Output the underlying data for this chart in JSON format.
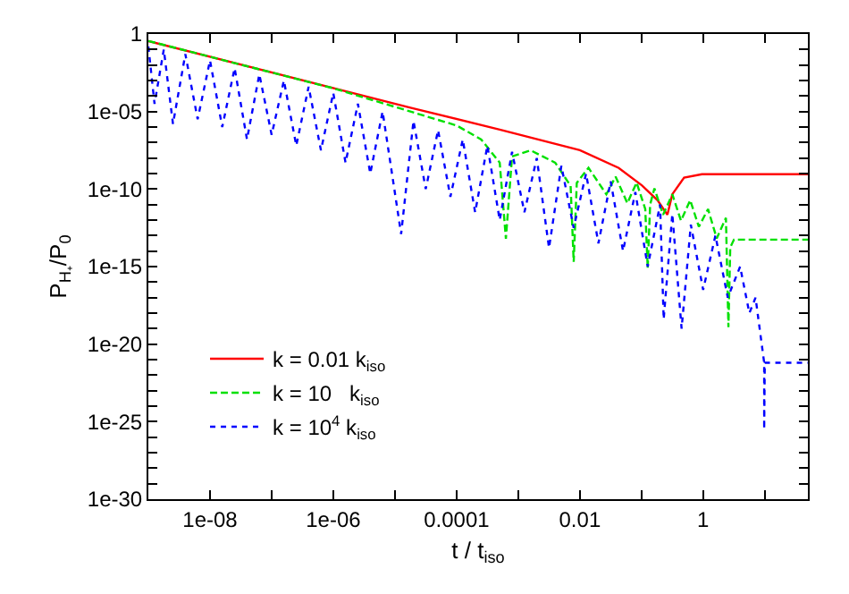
{
  "chart_data": {
    "type": "line",
    "xlabel": "t / t$_{iso}$",
    "ylabel": "P$_{H₊}$/P$_{0}$",
    "log": "xy",
    "legend": "bottom left",
    "marker": "none",
    "xlim": [
      1e-09,
      50
    ],
    "ylim": [
      1e-30,
      1
    ],
    "xticks": [
      1e-08,
      1e-06,
      0.0001,
      0.01,
      1,
      {
        "value": 1e-07,
        "label": null
      },
      {
        "value": 1e-05,
        "label": null
      },
      {
        "value": 0.001,
        "label": null
      },
      {
        "value": 0.1,
        "label": null
      },
      {
        "value": 10,
        "label": null
      }
    ],
    "yticks": [
      1,
      1e-05,
      1e-10,
      1e-15,
      1e-20,
      1e-25,
      1e-30,
      {
        "value": 0.1,
        "label": null
      },
      {
        "value": 0.01,
        "label": null
      },
      {
        "value": 0.001,
        "label": null
      },
      {
        "value": 0.0001,
        "label": null
      },
      {
        "value": 1e-06,
        "label": null
      },
      {
        "value": 1e-07,
        "label": null
      },
      {
        "value": 1e-08,
        "label": null
      },
      {
        "value": 1e-09,
        "label": null
      },
      {
        "value": 1e-11,
        "label": null
      },
      {
        "value": 1e-12,
        "label": null
      },
      {
        "value": 1e-13,
        "label": null
      },
      {
        "value": 1e-14,
        "label": null
      },
      {
        "value": 1e-16,
        "label": null
      },
      {
        "value": 1e-17,
        "label": null
      },
      {
        "value": 1e-18,
        "label": null
      },
      {
        "value": 1e-19,
        "label": null
      },
      {
        "value": 1e-21,
        "label": null
      },
      {
        "value": 1e-22,
        "label": null
      },
      {
        "value": 1e-23,
        "label": null
      },
      {
        "value": 1e-24,
        "label": null
      },
      {
        "value": 1e-26,
        "label": null
      },
      {
        "value": 1e-27,
        "label": null
      },
      {
        "value": 1e-28,
        "label": null
      },
      {
        "value": 1e-29,
        "label": null
      }
    ],
    "series": [
      {
        "name": "k = 0.01 k$_{iso}$",
        "color": "#ff0000",
        "line_style": "solid",
        "x": [
          1e-09,
          1.78e-05,
          0.000501,
          0.01,
          0.0427,
          0.102,
          0.182,
          0.263,
          0.316,
          0.49,
          0.955,
          50
        ],
        "values": [
          0.347,
          1.78e-05,
          6.9e-07,
          3.2e-08,
          2.3e-09,
          1.7e-10,
          1.9e-11,
          2.2e-12,
          4.6e-11,
          5.4e-10,
          9.1e-10,
          9.1e-10
        ]
      },
      {
        "name": "k = 10   k$_{iso}$",
        "color": "#00e000",
        "line_style": "dashed",
        "x": [
          1e-09,
          1e-06,
          1.78e-05,
          0.0001,
          0.000251,
          0.000501,
          0.000631,
          0.000794,
          0.00158,
          0.00398,
          0.00708,
          0.00794,
          0.00891,
          0.0138,
          0.0269,
          0.038,
          0.0589,
          0.0832,
          0.115,
          0.126,
          0.138,
          0.162,
          0.224,
          0.316,
          0.437,
          0.617,
          0.851,
          1.2,
          1.66,
          2.34,
          2.57,
          2.75,
          3.16,
          50
        ],
        "values": [
          0.355,
          0.000316,
          1e-05,
          1.26e-06,
          1.58e-07,
          5.01e-09,
          6.31e-14,
          1.26e-08,
          3.16e-08,
          5.01e-09,
          1.58e-10,
          2e-15,
          2.51e-10,
          2.34e-09,
          4.57e-11,
          6.31e-10,
          1.23e-11,
          2.63e-10,
          5.13e-12,
          7.94e-16,
          1e-11,
          1.1e-10,
          2.19e-12,
          4.57e-11,
          9.1e-13,
          1.9e-11,
          3.7e-13,
          5.13e-12,
          6.5e-14,
          1.4e-12,
          1.26e-19,
          1.74e-14,
          5.5e-14,
          5.5e-14
        ]
      },
      {
        "name": "k = 10$^{4}$ k$_{iso}$",
        "color": "#0000ff",
        "line_style": "dotted",
        "x": [
          1e-09,
          1.26e-09,
          1.78e-09,
          2.51e-09,
          3.98e-09,
          6.31e-09,
          1e-08,
          1.58e-08,
          2.51e-08,
          3.98e-08,
          6.31e-08,
          1e-07,
          1.58e-07,
          2.51e-07,
          3.98e-07,
          6.31e-07,
          1e-06,
          1.58e-06,
          2.51e-06,
          3.98e-06,
          6.31e-06,
          1.26e-05,
          2e-05,
          3.16e-05,
          5.01e-05,
          7.94e-05,
          0.000126,
          0.0002,
          0.000316,
          0.000501,
          0.000794,
          0.00126,
          0.002,
          0.00316,
          0.00501,
          0.00794,
          0.0126,
          0.02,
          0.0316,
          0.0501,
          0.0794,
          0.126,
          0.2,
          0.229,
          0.316,
          0.447,
          0.631,
          1,
          1.58,
          2.51,
          3.98,
          5.62,
          7.08,
          8.91,
          9.77,
          9.77,
          10,
          50
        ],
        "values": [
          0.158,
          3.16e-05,
          0.1,
          1.58e-06,
          0.0501,
          3.16e-06,
          0.02,
          1e-06,
          0.00631,
          1.58e-07,
          0.00251,
          3.16e-07,
          0.001,
          6.31e-08,
          0.000398,
          3.16e-08,
          0.000158,
          5.01e-09,
          3.16e-05,
          1e-09,
          1e-05,
          1.26e-13,
          2.51e-06,
          1e-10,
          6.31e-07,
          3.16e-11,
          1.58e-07,
          3.16e-12,
          6.31e-08,
          1e-12,
          2.51e-08,
          3.16e-12,
          1e-08,
          1.58e-14,
          3.16e-09,
          3.16e-13,
          1e-09,
          3.16e-14,
          3.16e-10,
          1e-14,
          6.31e-11,
          1e-15,
          1e-11,
          3.98e-19,
          2.51e-12,
          1e-19,
          5.01e-13,
          3.16e-17,
          1e-13,
          1e-17,
          1e-15,
          1e-18,
          1e-17,
          1e-20,
          6.31e-22,
          3.16e-26,
          6.31e-22,
          6.31e-22
        ]
      }
    ]
  }
}
